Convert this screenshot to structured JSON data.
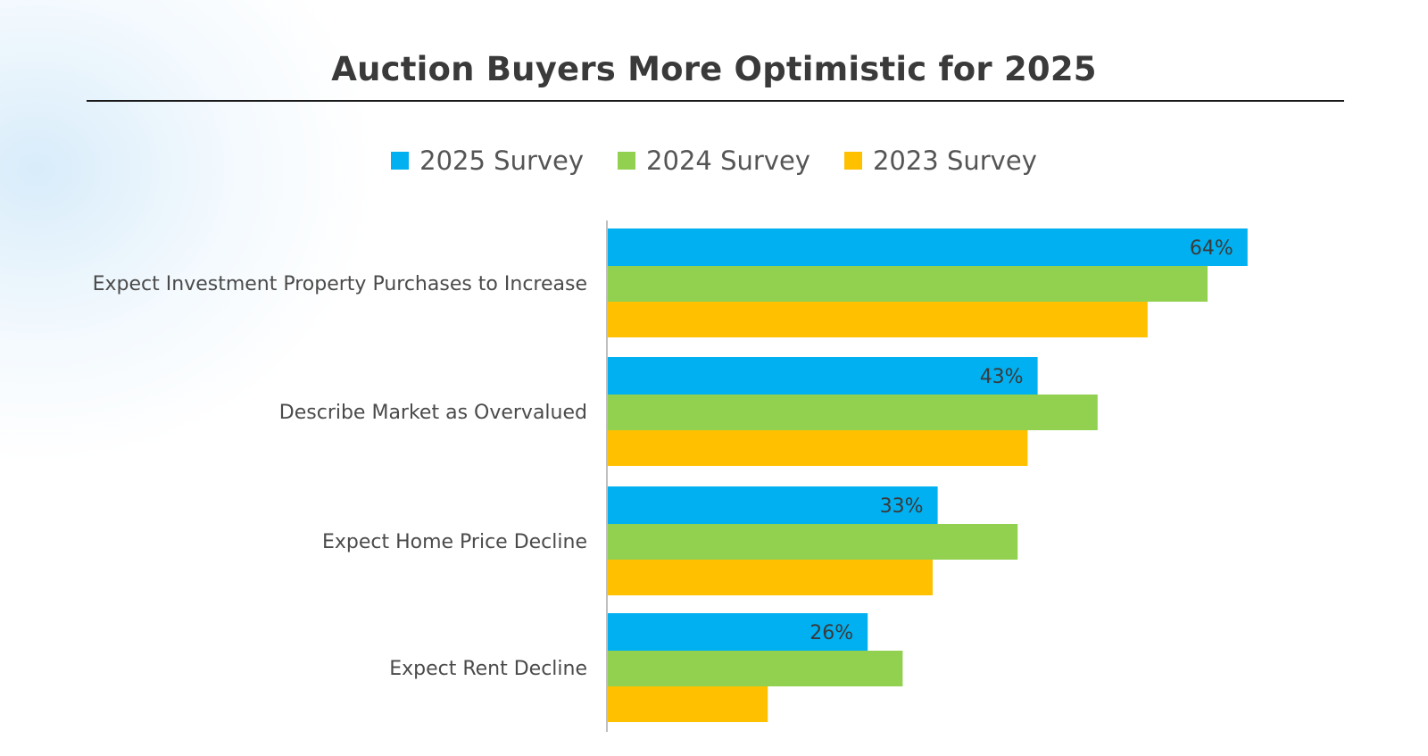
{
  "chart_data": {
    "type": "bar",
    "orientation": "horizontal",
    "title": "Auction Buyers More Optimistic for 2025",
    "categories": [
      "Expect Investment Property Purchases to Increase",
      "Describe Market as Overvalued",
      "Expect Home Price Decline",
      "Expect Rent Decline"
    ],
    "series": [
      {
        "name": "2025 Survey",
        "color": "#00B0F0",
        "values": [
          64,
          43,
          33,
          26
        ],
        "labels": [
          "64%",
          "43%",
          "33%",
          "26%"
        ]
      },
      {
        "name": "2024 Survey",
        "color": "#92D050",
        "values": [
          60,
          49,
          41,
          29.5
        ],
        "labels": [
          "",
          "",
          "",
          ""
        ]
      },
      {
        "name": "2023 Survey",
        "color": "#FFC000",
        "values": [
          54,
          42,
          32.5,
          16
        ],
        "labels": [
          "",
          "",
          "",
          ""
        ]
      }
    ],
    "xlim": [
      0,
      100
    ],
    "legend_position": "top-center",
    "grid": false
  }
}
